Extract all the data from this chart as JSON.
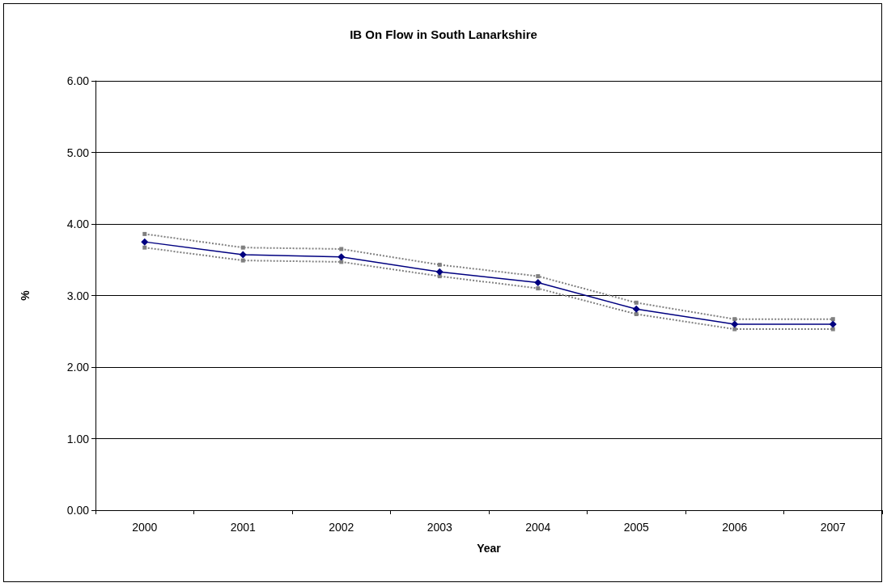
{
  "chart_data": {
    "type": "line",
    "title": "IB On Flow in South Lanarkshire",
    "xlabel": "Year",
    "ylabel": "%",
    "categories": [
      "2000",
      "2001",
      "2002",
      "2003",
      "2004",
      "2005",
      "2006",
      "2007"
    ],
    "series": [
      {
        "color": "#808080",
        "values": [
          3.86,
          3.67,
          3.65,
          3.43,
          3.27,
          2.9,
          2.67,
          2.67
        ],
        "line_style": "dotted",
        "marker": "square"
      },
      {
        "color": "#808080",
        "values": [
          3.67,
          3.49,
          3.47,
          3.27,
          3.1,
          2.74,
          2.53,
          2.53
        ],
        "line_style": "dotted",
        "marker": "square"
      },
      {
        "color": "#000080",
        "values": [
          3.75,
          3.57,
          3.54,
          3.33,
          3.18,
          2.81,
          2.6,
          2.6
        ]
      }
    ],
    "ylim": [
      0,
      6
    ],
    "yticks": [
      {
        "value": 0,
        "label": "0.00"
      },
      {
        "value": 1,
        "label": "1.00"
      },
      {
        "value": 2,
        "label": "2.00"
      },
      {
        "value": 3,
        "label": "3.00"
      },
      {
        "value": 4,
        "label": "4.00"
      },
      {
        "value": 5,
        "label": "5.00"
      },
      {
        "value": 6,
        "label": "6.00"
      }
    ],
    "grid": "y",
    "marker": "diamond",
    "line_style": "solid"
  }
}
